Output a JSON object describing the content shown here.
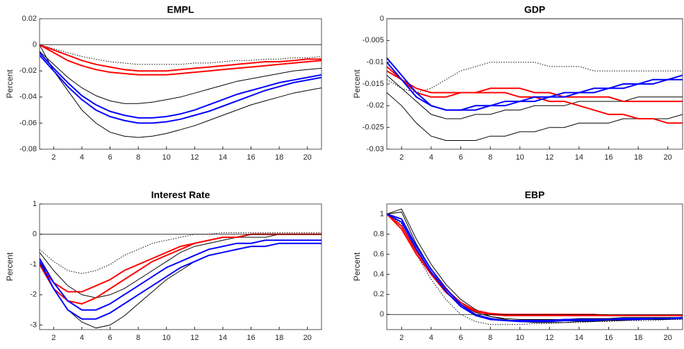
{
  "chart_data": [
    {
      "type": "line",
      "title": "EMPL",
      "ylabel": "Percent",
      "x": [
        1,
        2,
        3,
        4,
        5,
        6,
        7,
        8,
        9,
        10,
        11,
        12,
        13,
        14,
        15,
        16,
        17,
        18,
        19,
        20,
        21
      ],
      "xlim": [
        1,
        21
      ],
      "xticks": [
        2,
        4,
        6,
        8,
        10,
        12,
        14,
        16,
        18,
        20
      ],
      "ylim": [
        -0.08,
        0.02
      ],
      "yticks": [
        -0.08,
        -0.06,
        -0.04,
        -0.02,
        0,
        0.02
      ],
      "hline": 0,
      "series": [
        {
          "color": "#000000",
          "style": "solid",
          "values": [
            0,
            -0.02,
            -0.035,
            -0.05,
            -0.06,
            -0.067,
            -0.07,
            -0.071,
            -0.07,
            -0.068,
            -0.065,
            -0.062,
            -0.058,
            -0.054,
            -0.05,
            -0.046,
            -0.043,
            -0.04,
            -0.037,
            -0.035,
            -0.033
          ]
        },
        {
          "color": "#000000",
          "style": "solid",
          "values": [
            -0.005,
            -0.015,
            -0.025,
            -0.033,
            -0.039,
            -0.043,
            -0.045,
            -0.045,
            -0.044,
            -0.042,
            -0.04,
            -0.037,
            -0.034,
            -0.031,
            -0.028,
            -0.026,
            -0.024,
            -0.022,
            -0.02,
            -0.019,
            -0.018
          ]
        },
        {
          "color": "#000000",
          "style": "dotted",
          "values": [
            0,
            -0.003,
            -0.006,
            -0.009,
            -0.011,
            -0.013,
            -0.014,
            -0.015,
            -0.015,
            -0.015,
            -0.015,
            -0.014,
            -0.014,
            -0.013,
            -0.012,
            -0.012,
            -0.011,
            -0.011,
            -0.01,
            -0.01,
            -0.009
          ]
        },
        {
          "color": "#ff0000",
          "style": "solid",
          "values": [
            0,
            -0.006,
            -0.012,
            -0.016,
            -0.019,
            -0.021,
            -0.022,
            -0.023,
            -0.023,
            -0.023,
            -0.022,
            -0.021,
            -0.02,
            -0.019,
            -0.018,
            -0.017,
            -0.016,
            -0.015,
            -0.014,
            -0.013,
            -0.012
          ]
        },
        {
          "color": "#ff0000",
          "style": "solid",
          "values": [
            0,
            -0.004,
            -0.008,
            -0.012,
            -0.015,
            -0.017,
            -0.019,
            -0.02,
            -0.02,
            -0.02,
            -0.019,
            -0.018,
            -0.017,
            -0.016,
            -0.015,
            -0.014,
            -0.013,
            -0.013,
            -0.012,
            -0.011,
            -0.011
          ]
        },
        {
          "color": "#0000ff",
          "style": "solid",
          "values": [
            -0.008,
            -0.02,
            -0.032,
            -0.042,
            -0.05,
            -0.055,
            -0.058,
            -0.06,
            -0.06,
            -0.059,
            -0.057,
            -0.054,
            -0.051,
            -0.047,
            -0.043,
            -0.039,
            -0.035,
            -0.032,
            -0.029,
            -0.027,
            -0.025
          ]
        },
        {
          "color": "#0000ff",
          "style": "solid",
          "values": [
            -0.006,
            -0.018,
            -0.029,
            -0.039,
            -0.046,
            -0.051,
            -0.054,
            -0.056,
            -0.056,
            -0.055,
            -0.053,
            -0.05,
            -0.046,
            -0.042,
            -0.038,
            -0.035,
            -0.032,
            -0.029,
            -0.027,
            -0.025,
            -0.023
          ]
        }
      ]
    },
    {
      "type": "line",
      "title": "GDP",
      "ylabel": "Percent",
      "x": [
        1,
        2,
        3,
        4,
        5,
        6,
        7,
        8,
        9,
        10,
        11,
        12,
        13,
        14,
        15,
        16,
        17,
        18,
        19,
        20,
        21
      ],
      "xlim": [
        1,
        21
      ],
      "xticks": [
        2,
        4,
        6,
        8,
        10,
        12,
        14,
        16,
        18,
        20
      ],
      "ylim": [
        -0.03,
        0
      ],
      "yticks": [
        -0.03,
        -0.025,
        -0.02,
        -0.015,
        -0.01,
        -0.005,
        0
      ],
      "hline": 0,
      "series": [
        {
          "color": "#000000",
          "style": "solid",
          "values": [
            -0.017,
            -0.02,
            -0.024,
            -0.027,
            -0.028,
            -0.028,
            -0.028,
            -0.027,
            -0.027,
            -0.026,
            -0.026,
            -0.025,
            -0.025,
            -0.024,
            -0.024,
            -0.024,
            -0.023,
            -0.023,
            -0.023,
            -0.023,
            -0.022
          ]
        },
        {
          "color": "#000000",
          "style": "solid",
          "values": [
            -0.013,
            -0.016,
            -0.019,
            -0.022,
            -0.023,
            -0.023,
            -0.022,
            -0.022,
            -0.021,
            -0.021,
            -0.02,
            -0.02,
            -0.02,
            -0.019,
            -0.019,
            -0.019,
            -0.019,
            -0.018,
            -0.018,
            -0.018,
            -0.018
          ]
        },
        {
          "color": "#000000",
          "style": "dotted",
          "values": [
            -0.014,
            -0.016,
            -0.017,
            -0.016,
            -0.014,
            -0.012,
            -0.011,
            -0.01,
            -0.01,
            -0.01,
            -0.01,
            -0.011,
            -0.011,
            -0.011,
            -0.012,
            -0.012,
            -0.012,
            -0.012,
            -0.012,
            -0.012,
            -0.012
          ]
        },
        {
          "color": "#ff0000",
          "style": "solid",
          "values": [
            -0.012,
            -0.014,
            -0.016,
            -0.017,
            -0.017,
            -0.017,
            -0.017,
            -0.017,
            -0.017,
            -0.018,
            -0.018,
            -0.019,
            -0.019,
            -0.02,
            -0.021,
            -0.022,
            -0.022,
            -0.023,
            -0.023,
            -0.024,
            -0.024
          ]
        },
        {
          "color": "#ff0000",
          "style": "solid",
          "values": [
            -0.011,
            -0.014,
            -0.017,
            -0.018,
            -0.018,
            -0.017,
            -0.017,
            -0.016,
            -0.016,
            -0.016,
            -0.017,
            -0.017,
            -0.018,
            -0.018,
            -0.018,
            -0.018,
            -0.019,
            -0.019,
            -0.019,
            -0.019,
            -0.019
          ]
        },
        {
          "color": "#0000ff",
          "style": "solid",
          "values": [
            -0.009,
            -0.013,
            -0.017,
            -0.02,
            -0.021,
            -0.021,
            -0.021,
            -0.02,
            -0.02,
            -0.019,
            -0.019,
            -0.018,
            -0.018,
            -0.017,
            -0.017,
            -0.016,
            -0.016,
            -0.015,
            -0.015,
            -0.014,
            -0.014
          ]
        },
        {
          "color": "#0000ff",
          "style": "solid",
          "values": [
            -0.01,
            -0.014,
            -0.018,
            -0.02,
            -0.021,
            -0.021,
            -0.02,
            -0.02,
            -0.019,
            -0.019,
            -0.018,
            -0.018,
            -0.017,
            -0.017,
            -0.016,
            -0.016,
            -0.015,
            -0.015,
            -0.014,
            -0.014,
            -0.013
          ]
        }
      ]
    },
    {
      "type": "line",
      "title": "Interest Rate",
      "ylabel": "Percent",
      "x": [
        1,
        2,
        3,
        4,
        5,
        6,
        7,
        8,
        9,
        10,
        11,
        12,
        13,
        14,
        15,
        16,
        17,
        18,
        19,
        20,
        21
      ],
      "xlim": [
        1,
        21
      ],
      "xticks": [
        2,
        4,
        6,
        8,
        10,
        12,
        14,
        16,
        18,
        20
      ],
      "ylim": [
        -3.15,
        1
      ],
      "yticks": [
        -3,
        -2,
        -1,
        0,
        1
      ],
      "hline": 0,
      "series": [
        {
          "color": "#000000",
          "style": "solid",
          "values": [
            -0.8,
            -1.8,
            -2.5,
            -2.9,
            -3.1,
            -3,
            -2.7,
            -2.3,
            -1.9,
            -1.5,
            -1.2,
            -0.9,
            -0.7,
            -0.6,
            -0.5,
            -0.4,
            -0.4,
            -0.3,
            -0.3,
            -0.3,
            -0.3
          ]
        },
        {
          "color": "#000000",
          "style": "solid",
          "values": [
            -0.6,
            -1.2,
            -1.7,
            -2,
            -2.1,
            -2,
            -1.8,
            -1.5,
            -1.2,
            -0.9,
            -0.6,
            -0.4,
            -0.3,
            -0.2,
            -0.1,
            -0.1,
            -0.1,
            0,
            0,
            0,
            0
          ]
        },
        {
          "color": "#000000",
          "style": "dotted",
          "values": [
            -0.5,
            -0.9,
            -1.2,
            -1.3,
            -1.2,
            -1,
            -0.7,
            -0.5,
            -0.3,
            -0.2,
            -0.1,
            0,
            0,
            0.05,
            0.05,
            0.05,
            0.05,
            0.05,
            0.05,
            0.05,
            0.05
          ]
        },
        {
          "color": "#ff0000",
          "style": "solid",
          "values": [
            -1,
            -1.8,
            -2.2,
            -2.3,
            -2.1,
            -1.8,
            -1.5,
            -1.2,
            -0.9,
            -0.7,
            -0.5,
            -0.3,
            -0.2,
            -0.1,
            -0.1,
            0,
            0,
            0,
            0,
            0,
            0
          ]
        },
        {
          "color": "#ff0000",
          "style": "solid",
          "values": [
            -1,
            -1.6,
            -1.9,
            -1.9,
            -1.7,
            -1.5,
            -1.2,
            -1,
            -0.8,
            -0.6,
            -0.4,
            -0.3,
            -0.2,
            -0.1,
            -0.1,
            0,
            0,
            0,
            0,
            0,
            0
          ]
        },
        {
          "color": "#0000ff",
          "style": "solid",
          "values": [
            -0.9,
            -1.8,
            -2.5,
            -2.8,
            -2.8,
            -2.6,
            -2.3,
            -2,
            -1.7,
            -1.4,
            -1.1,
            -0.9,
            -0.7,
            -0.6,
            -0.5,
            -0.4,
            -0.4,
            -0.3,
            -0.3,
            -0.3,
            -0.3
          ]
        },
        {
          "color": "#0000ff",
          "style": "solid",
          "values": [
            -0.8,
            -1.6,
            -2.2,
            -2.5,
            -2.5,
            -2.3,
            -2,
            -1.7,
            -1.4,
            -1.1,
            -0.9,
            -0.7,
            -0.5,
            -0.4,
            -0.3,
            -0.3,
            -0.2,
            -0.2,
            -0.2,
            -0.2,
            -0.2
          ]
        }
      ]
    },
    {
      "type": "line",
      "title": "EBP",
      "ylabel": "Percent",
      "x": [
        1,
        2,
        3,
        4,
        5,
        6,
        7,
        8,
        9,
        10,
        11,
        12,
        13,
        14,
        15,
        16,
        17,
        18,
        19,
        20,
        21
      ],
      "xlim": [
        1,
        21
      ],
      "xticks": [
        2,
        4,
        6,
        8,
        10,
        12,
        14,
        16,
        18,
        20
      ],
      "ylim": [
        -0.15,
        1.1
      ],
      "yticks": [
        0,
        0.2,
        0.4,
        0.6,
        0.8,
        1
      ],
      "hline": 0,
      "series": [
        {
          "color": "#000000",
          "style": "solid",
          "values": [
            1,
            1.05,
            0.75,
            0.5,
            0.3,
            0.15,
            0.05,
            -0.02,
            -0.05,
            -0.07,
            -0.08,
            -0.08,
            -0.08,
            -0.07,
            -0.07,
            -0.06,
            -0.06,
            -0.05,
            -0.05,
            -0.05,
            -0.04
          ]
        },
        {
          "color": "#000000",
          "style": "solid",
          "values": [
            1,
            1.02,
            0.7,
            0.45,
            0.25,
            0.1,
            0.02,
            -0.02,
            -0.04,
            -0.05,
            -0.05,
            -0.05,
            -0.05,
            -0.04,
            -0.04,
            -0.04,
            -0.03,
            -0.03,
            -0.03,
            -0.03,
            -0.03
          ]
        },
        {
          "color": "#000000",
          "style": "dotted",
          "values": [
            1,
            0.9,
            0.6,
            0.35,
            0.15,
            0,
            -0.07,
            -0.1,
            -0.1,
            -0.1,
            -0.09,
            -0.09,
            -0.08,
            -0.08,
            -0.07,
            -0.07,
            -0.06,
            -0.06,
            -0.06,
            -0.05,
            -0.05
          ]
        },
        {
          "color": "#ff0000",
          "style": "solid",
          "values": [
            1,
            0.85,
            0.6,
            0.4,
            0.22,
            0.1,
            0.03,
            0,
            -0.01,
            -0.01,
            -0.01,
            -0.01,
            -0.01,
            -0.01,
            -0.01,
            -0.01,
            -0.01,
            -0.01,
            -0.01,
            -0.01,
            -0.01
          ]
        },
        {
          "color": "#ff0000",
          "style": "solid",
          "values": [
            1,
            0.88,
            0.63,
            0.42,
            0.25,
            0.12,
            0.04,
            0.01,
            0,
            0,
            0,
            0,
            0,
            0,
            0,
            -0.01,
            -0.01,
            -0.01,
            -0.01,
            -0.01,
            -0.01
          ]
        },
        {
          "color": "#0000ff",
          "style": "solid",
          "values": [
            1,
            0.95,
            0.68,
            0.45,
            0.26,
            0.1,
            0,
            -0.04,
            -0.06,
            -0.07,
            -0.07,
            -0.07,
            -0.06,
            -0.06,
            -0.06,
            -0.05,
            -0.05,
            -0.05,
            -0.04,
            -0.04,
            -0.04
          ]
        },
        {
          "color": "#0000ff",
          "style": "solid",
          "values": [
            1,
            0.92,
            0.65,
            0.42,
            0.23,
            0.08,
            -0.01,
            -0.05,
            -0.06,
            -0.06,
            -0.06,
            -0.06,
            -0.05,
            -0.05,
            -0.05,
            -0.05,
            -0.04,
            -0.04,
            -0.04,
            -0.04,
            -0.03
          ]
        }
      ]
    }
  ]
}
